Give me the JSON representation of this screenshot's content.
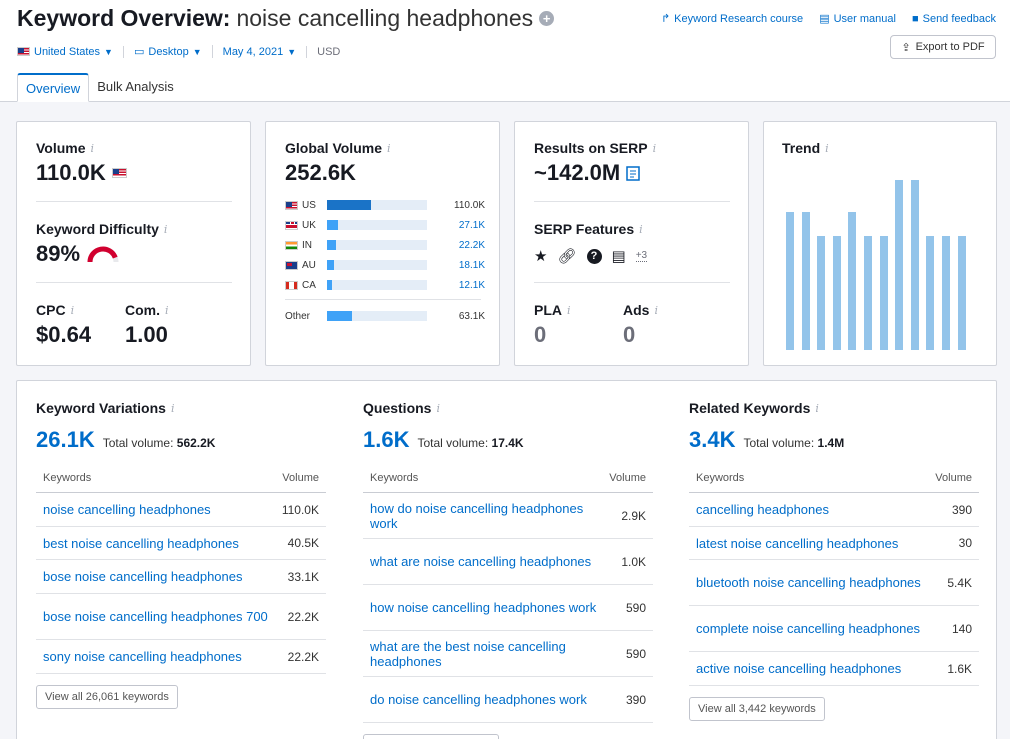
{
  "header": {
    "title": "Keyword Overview:",
    "keyword": "noise cancelling headphones",
    "links": [
      "Keyword Research course",
      "User manual",
      "Send feedback"
    ],
    "export_label": "Export to PDF"
  },
  "filters": {
    "country": "United States",
    "device": "Desktop",
    "date": "May 4, 2021",
    "currency": "USD"
  },
  "tabs": [
    "Overview",
    "Bulk Analysis"
  ],
  "volume": {
    "label": "Volume",
    "value": "110.0K"
  },
  "difficulty": {
    "label": "Keyword Difficulty",
    "value": "89%",
    "percent": 89,
    "color": "#d1002f"
  },
  "cpc": {
    "label": "CPC",
    "value": "$0.64"
  },
  "com": {
    "label": "Com.",
    "value": "1.00"
  },
  "global": {
    "label": "Global Volume",
    "value": "252.6K",
    "countries": [
      {
        "code": "US",
        "value": "110.0K",
        "share": 0.44
      },
      {
        "code": "UK",
        "value": "27.1K",
        "share": 0.11
      },
      {
        "code": "IN",
        "value": "22.2K",
        "share": 0.09
      },
      {
        "code": "AU",
        "value": "18.1K",
        "share": 0.07
      },
      {
        "code": "CA",
        "value": "12.1K",
        "share": 0.05
      }
    ],
    "other": {
      "label": "Other",
      "value": "63.1K",
      "share": 0.25
    }
  },
  "serp": {
    "results_label": "Results on SERP",
    "results_value": "~142.0M",
    "features_label": "SERP Features",
    "features_more": "+3",
    "pla_label": "PLA",
    "pla_value": "0",
    "ads_label": "Ads",
    "ads_value": "0"
  },
  "trend": {
    "label": "Trend",
    "values": [
      0.81,
      0.81,
      0.67,
      0.67,
      0.81,
      0.67,
      0.67,
      1.0,
      1.0,
      0.67,
      0.67,
      0.67
    ]
  },
  "variations": {
    "title": "Keyword Variations",
    "count": "26.1K",
    "total_label": "Total volume:",
    "total_value": "562.2K",
    "col_keywords": "Keywords",
    "col_volume": "Volume",
    "rows": [
      {
        "k": "noise cancelling headphones",
        "v": "110.0K"
      },
      {
        "k": "best noise cancelling headphones",
        "v": "40.5K"
      },
      {
        "k": "bose noise cancelling headphones",
        "v": "33.1K"
      },
      {
        "k": "bose noise cancelling headphones 700",
        "v": "22.2K"
      },
      {
        "k": "sony noise cancelling headphones",
        "v": "22.2K"
      }
    ],
    "view_all": "View all 26,061 keywords"
  },
  "questions": {
    "title": "Questions",
    "count": "1.6K",
    "total_label": "Total volume:",
    "total_value": "17.4K",
    "col_keywords": "Keywords",
    "col_volume": "Volume",
    "rows": [
      {
        "k": "how do noise cancelling headphones work",
        "v": "2.9K"
      },
      {
        "k": "what are noise cancelling headphones",
        "v": "1.0K"
      },
      {
        "k": "how noise cancelling headphones work",
        "v": "590"
      },
      {
        "k": "what are the best noise cancelling headphones",
        "v": "590"
      },
      {
        "k": "do noise cancelling headphones work",
        "v": "390"
      }
    ]
  },
  "related": {
    "title": "Related Keywords",
    "count": "3.4K",
    "total_label": "Total volume:",
    "total_value": "1.4M",
    "col_keywords": "Keywords",
    "col_volume": "Volume",
    "rows": [
      {
        "k": "cancelling headphones",
        "v": "390"
      },
      {
        "k": "latest noise cancelling headphones",
        "v": "30"
      },
      {
        "k": "bluetooth noise cancelling headphones",
        "v": "5.4K"
      },
      {
        "k": "complete noise cancelling headphones",
        "v": "140"
      },
      {
        "k": "active noise cancelling headphones",
        "v": "1.6K"
      }
    ],
    "view_all": "View all 3,442 keywords"
  }
}
